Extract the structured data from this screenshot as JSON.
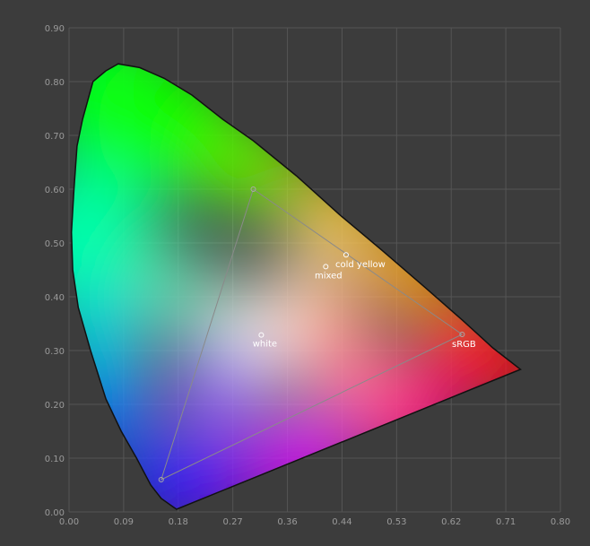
{
  "chart_data": {
    "type": "scatter",
    "title": "",
    "xlabel": "",
    "ylabel": "",
    "xlim": [
      0,
      0.8
    ],
    "ylim": [
      0,
      0.9
    ],
    "x_ticks": [
      "0.00",
      "0.09",
      "0.18",
      "0.27",
      "0.36",
      "0.44",
      "0.53",
      "0.62",
      "0.71",
      "0.80"
    ],
    "y_ticks": [
      "0.00",
      "0.10",
      "0.20",
      "0.30",
      "0.40",
      "0.50",
      "0.60",
      "0.70",
      "0.80",
      "0.90"
    ],
    "grid": true,
    "locus": [
      [
        0.175,
        0.005
      ],
      [
        0.17,
        0.009
      ],
      [
        0.15,
        0.025
      ],
      [
        0.133,
        0.05
      ],
      [
        0.11,
        0.1
      ],
      [
        0.085,
        0.15
      ],
      [
        0.06,
        0.21
      ],
      [
        0.035,
        0.3
      ],
      [
        0.015,
        0.38
      ],
      [
        0.006,
        0.45
      ],
      [
        0.004,
        0.52
      ],
      [
        0.008,
        0.6
      ],
      [
        0.013,
        0.68
      ],
      [
        0.022,
        0.73
      ],
      [
        0.039,
        0.8
      ],
      [
        0.06,
        0.82
      ],
      [
        0.08,
        0.833
      ],
      [
        0.115,
        0.826
      ],
      [
        0.155,
        0.806
      ],
      [
        0.2,
        0.775
      ],
      [
        0.25,
        0.73
      ],
      [
        0.3,
        0.69
      ],
      [
        0.37,
        0.625
      ],
      [
        0.44,
        0.553
      ],
      [
        0.51,
        0.486
      ],
      [
        0.58,
        0.417
      ],
      [
        0.64,
        0.357
      ],
      [
        0.69,
        0.305
      ],
      [
        0.735,
        0.265
      ]
    ],
    "gamut": {
      "name": "sRGB",
      "vertices": [
        [
          0.64,
          0.33
        ],
        [
          0.3,
          0.6
        ],
        [
          0.15,
          0.06
        ]
      ]
    },
    "points": [
      {
        "name": "white",
        "x": 0.313,
        "y": 0.329
      },
      {
        "name": "mixed",
        "x": 0.418,
        "y": 0.456
      },
      {
        "name": "cold yellow",
        "x": 0.451,
        "y": 0.478
      }
    ]
  }
}
